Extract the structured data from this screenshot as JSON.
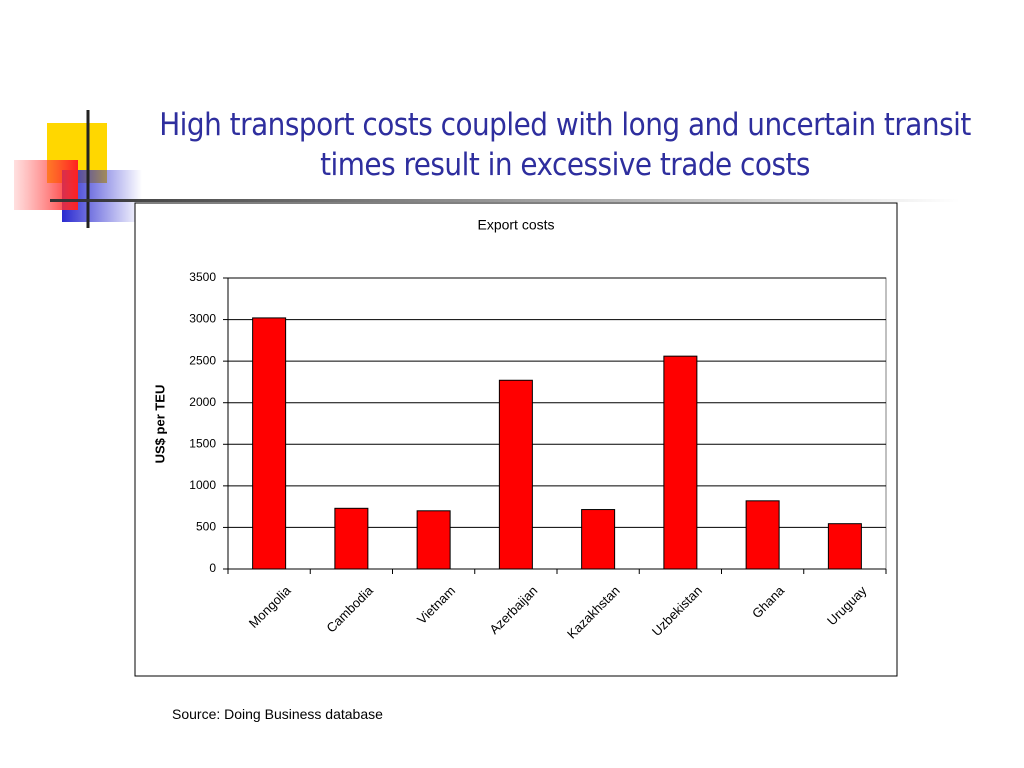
{
  "title": "High transport costs coupled with long and uncertain transit times result in excessive trade costs",
  "source": "Source: Doing Business database",
  "chart_data": {
    "type": "bar",
    "title": "Export costs",
    "y_label": "US$ per TEU",
    "categories": [
      "Mongolia",
      "Cambodia",
      "Vietnam",
      "Azerbaijan",
      "Kazakhstan",
      "Uzbekistan",
      "Ghana",
      "Uruguay"
    ],
    "values": [
      3020,
      730,
      700,
      2270,
      715,
      2560,
      820,
      545
    ],
    "color": "#ff0000",
    "ylim": [
      0,
      3500
    ],
    "yticks": [
      0,
      500,
      1000,
      1500,
      2000,
      2500,
      3000,
      3500
    ],
    "grid": true
  }
}
